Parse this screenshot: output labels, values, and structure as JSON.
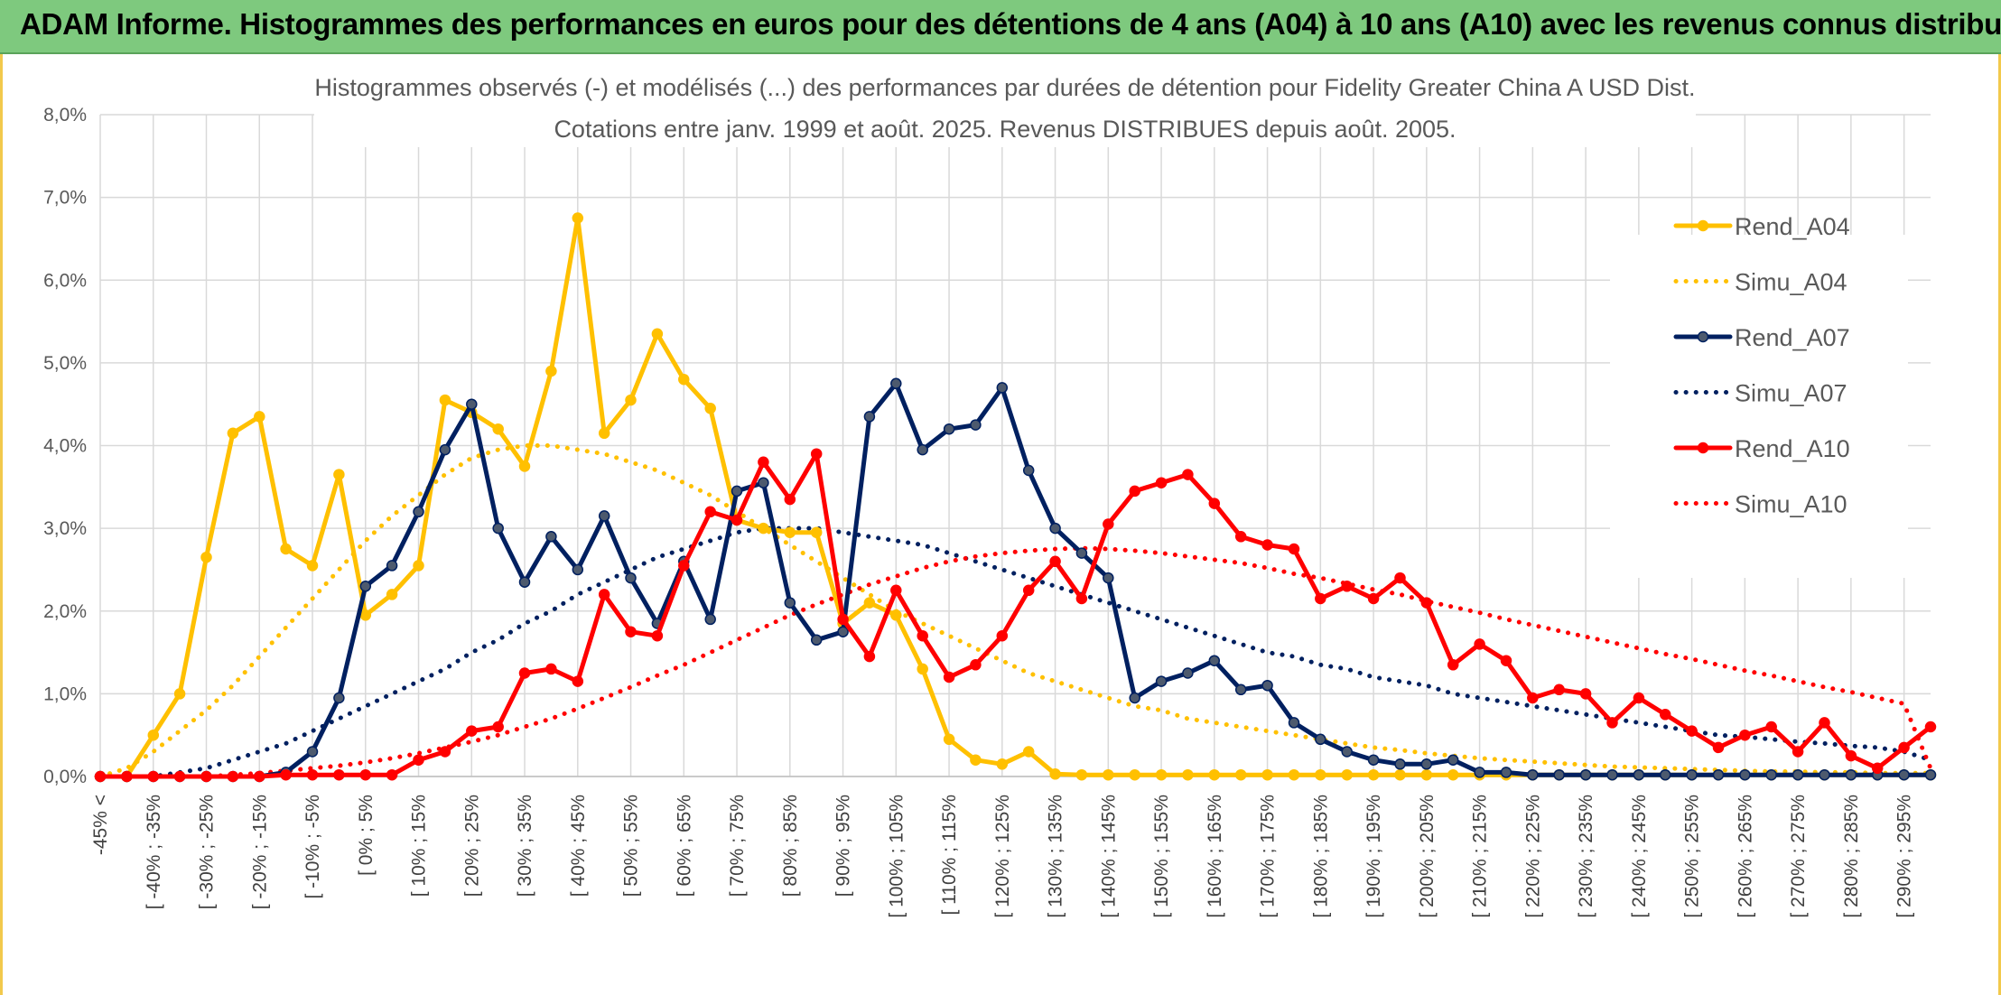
{
  "banner": {
    "title": "ADAM Informe. Histogrammes des performances en euros pour des détentions de 4 ans (A04) à 10 ans (A10) avec les revenus connus distribués"
  },
  "chart_data": {
    "type": "line",
    "title_line1": "Histogrammes observés (-) et modélisés (...) des performances par durées de détention pour Fidelity Greater China A USD Dist.",
    "title_line2": "Cotations entre janv. 1999 et août. 2025. Revenus DISTRIBUES depuis août. 2005.",
    "xlabel": "",
    "ylabel": "",
    "ylim": [
      0,
      8
    ],
    "y_unit": "%",
    "y_ticks": [
      "0,0%",
      "1,0%",
      "2,0%",
      "3,0%",
      "4,0%",
      "5,0%",
      "6,0%",
      "7,0%",
      "8,0%"
    ],
    "grid": true,
    "legend_position": "right",
    "categories": [
      "-45% <",
      "[ -45% ; -40%",
      "[ -40% ; -35%",
      "[ -35% ; -30%",
      "[ -30% ; -25%",
      "[ -25% ; -20%",
      "[ -20% ; -15%",
      "[ -15% ; -10%",
      "[ -10% ; -5%",
      "[ -5% ; 0%",
      "[ 0% ; 5%",
      "[ 5% ; 10%",
      "[ 10% ; 15%",
      "[ 15% ; 20%",
      "[ 20% ; 25%",
      "[ 25% ; 30%",
      "[ 30% ; 35%",
      "[ 35% ; 40%",
      "[ 40% ; 45%",
      "[ 45% ; 50%",
      "[ 50% ; 55%",
      "[ 55% ; 60%",
      "[ 60% ; 65%",
      "[ 65% ; 70%",
      "[ 70% ; 75%",
      "[ 75% ; 80%",
      "[ 80% ; 85%",
      "[ 85% ; 90%",
      "[ 90% ; 95%",
      "[ 95% ; 100%",
      "[ 100% ; 105%",
      "[ 105% ; 110%",
      "[ 110% ; 115%",
      "[ 115% ; 120%",
      "[ 120% ; 125%",
      "[ 125% ; 130%",
      "[ 130% ; 135%",
      "[ 135% ; 140%",
      "[ 140% ; 145%",
      "[ 145% ; 150%",
      "[ 150% ; 155%",
      "[ 155% ; 160%",
      "[ 160% ; 165%",
      "[ 165% ; 170%",
      "[ 170% ; 175%",
      "[ 175% ; 180%",
      "[ 180% ; 185%",
      "[ 185% ; 190%",
      "[ 190% ; 195%",
      "[ 195% ; 200%",
      "[ 200% ; 205%",
      "[ 205% ; 210%",
      "[ 210% ; 215%",
      "[ 215% ; 220%",
      "[ 220% ; 225%",
      "[ 225% ; 230%",
      "[ 230% ; 235%",
      "[ 235% ; 240%",
      "[ 240% ; 245%",
      "[ 245% ; 250%",
      "[ 250% ; 255%",
      "[ 255% ; 260%",
      "[ 260% ; 265%",
      "[ 265% ; 270%",
      "[ 270% ; 275%",
      "[ 275% ; 280%",
      "[ 280% ; 285%",
      "[ 285% ; 290%",
      "[ 290% ; 295%",
      "[ 295% ; 300%"
    ],
    "shown_tick_labels": [
      "-45% <",
      "[ -40% ; -35%",
      "[ -30% ; -25%",
      "[ -20% ; -15%",
      "[ -10% ; -5%",
      "[ 0% ; 5%",
      "[ 10% ; 15%",
      "[ 20% ; 25%",
      "[ 30% ; 35%",
      "[ 40% ; 45%",
      "[ 50% ; 55%",
      "[ 60% ; 65%",
      "[ 70% ; 75%",
      "[ 80% ; 85%",
      "[ 90% ; 95%",
      "[ 100% ; 105%",
      "[ 110% ; 115%",
      "[ 120% ; 125%",
      "[ 130% ; 135%",
      "[ 140% ; 145%",
      "[ 150% ; 155%",
      "[ 160% ; 165%",
      "[ 170% ; 175%",
      "[ 180% ; 185%",
      "[ 190% ; 195%",
      "[ 200% ; 205%",
      "[ 210% ; 215%",
      "[ 220% ; 225%",
      "[ 230% ; 235%",
      "[ 240% ; 245%",
      "[ 250% ; 255%",
      "[ 260% ; 265%",
      "[ 270% ; 275%",
      "[ 280% ; 285%",
      "[ 290% ; 295%"
    ],
    "series": [
      {
        "name": "Rend_A04",
        "color": "#ffc000",
        "style": "solid",
        "markers": true,
        "values": [
          0,
          0,
          0.5,
          1.0,
          2.65,
          4.15,
          4.35,
          2.75,
          2.55,
          3.65,
          1.95,
          2.2,
          2.55,
          4.55,
          4.4,
          4.2,
          3.75,
          4.9,
          6.75,
          4.15,
          4.55,
          5.35,
          4.8,
          4.45,
          3.1,
          3.0,
          2.95,
          2.95,
          1.85,
          2.1,
          1.95,
          1.3,
          0.45,
          0.2,
          0.15,
          0.3,
          0.03,
          0.02,
          0.02,
          0.02,
          0.02,
          0.02,
          0.02,
          0.02,
          0.02,
          0.02,
          0.02,
          0.02,
          0.02,
          0.02,
          0.02,
          0.02,
          0.02,
          0.02,
          0.02,
          0.02,
          0.02,
          0.02,
          0.02,
          0.02,
          0.02,
          0.02,
          0.02,
          0.02,
          0.02,
          0.02,
          0.02,
          0.02,
          0.02,
          0.02
        ]
      },
      {
        "name": "Simu_A04",
        "color": "#ffc000",
        "style": "dotted",
        "markers": false,
        "values": [
          0,
          0.1,
          0.3,
          0.55,
          0.8,
          1.1,
          1.45,
          1.8,
          2.15,
          2.5,
          2.85,
          3.15,
          3.4,
          3.65,
          3.85,
          3.95,
          4.0,
          4.0,
          3.95,
          3.9,
          3.8,
          3.7,
          3.55,
          3.4,
          3.2,
          3.0,
          2.8,
          2.6,
          2.4,
          2.2,
          2.0,
          1.85,
          1.7,
          1.55,
          1.4,
          1.25,
          1.15,
          1.05,
          0.95,
          0.85,
          0.8,
          0.7,
          0.65,
          0.6,
          0.55,
          0.5,
          0.45,
          0.4,
          0.35,
          0.32,
          0.28,
          0.25,
          0.22,
          0.2,
          0.18,
          0.16,
          0.14,
          0.12,
          0.11,
          0.1,
          0.09,
          0.08,
          0.07,
          0.06,
          0.06,
          0.05,
          0.05,
          0.04,
          0.04,
          0.04
        ]
      },
      {
        "name": "Rend_A07",
        "color": "#002060",
        "style": "solid",
        "markers": true,
        "values": [
          0,
          0,
          0,
          0,
          0,
          0,
          0,
          0.05,
          0.3,
          0.95,
          2.3,
          2.55,
          3.2,
          3.95,
          4.5,
          3.0,
          2.35,
          2.9,
          2.5,
          3.15,
          2.4,
          1.85,
          2.6,
          1.9,
          3.45,
          3.55,
          2.1,
          1.65,
          1.75,
          4.35,
          4.75,
          3.95,
          4.2,
          4.25,
          4.7,
          3.7,
          3.0,
          2.7,
          2.4,
          0.95,
          1.15,
          1.25,
          1.4,
          1.05,
          1.1,
          0.65,
          0.45,
          0.3,
          0.2,
          0.15,
          0.15,
          0.2,
          0.05,
          0.05,
          0.02,
          0.02,
          0.02,
          0.02,
          0.02,
          0.02,
          0.02,
          0.02,
          0.02,
          0.02,
          0.02,
          0.02,
          0.02,
          0.02,
          0.02,
          0.02
        ]
      },
      {
        "name": "Simu_A07",
        "color": "#002060",
        "style": "dotted",
        "markers": false,
        "values": [
          0,
          0,
          0,
          0.05,
          0.1,
          0.2,
          0.3,
          0.4,
          0.55,
          0.7,
          0.85,
          1.0,
          1.15,
          1.3,
          1.5,
          1.65,
          1.85,
          2.0,
          2.2,
          2.35,
          2.5,
          2.65,
          2.75,
          2.85,
          2.95,
          3.0,
          3.0,
          3.0,
          2.95,
          2.9,
          2.85,
          2.8,
          2.7,
          2.6,
          2.5,
          2.4,
          2.3,
          2.2,
          2.1,
          2.0,
          1.9,
          1.8,
          1.7,
          1.6,
          1.5,
          1.45,
          1.35,
          1.3,
          1.2,
          1.15,
          1.1,
          1.0,
          0.95,
          0.9,
          0.85,
          0.8,
          0.75,
          0.7,
          0.65,
          0.6,
          0.55,
          0.5,
          0.48,
          0.45,
          0.42,
          0.4,
          0.37,
          0.35,
          0.3,
          0.2
        ]
      },
      {
        "name": "Rend_A10",
        "color": "#ff0000",
        "style": "solid",
        "markers": true,
        "values": [
          0,
          0,
          0,
          0,
          0,
          0,
          0,
          0.02,
          0.02,
          0.02,
          0.02,
          0.02,
          0.2,
          0.3,
          0.55,
          0.6,
          1.25,
          1.3,
          1.15,
          2.2,
          1.75,
          1.7,
          2.55,
          3.2,
          3.1,
          3.8,
          3.35,
          3.9,
          1.9,
          1.45,
          2.25,
          1.7,
          1.2,
          1.35,
          1.7,
          2.25,
          2.6,
          2.15,
          3.05,
          3.45,
          3.55,
          3.65,
          3.3,
          2.9,
          2.8,
          2.75,
          2.15,
          2.3,
          2.15,
          2.4,
          2.1,
          1.35,
          1.6,
          1.4,
          0.95,
          1.05,
          1.0,
          0.65,
          0.95,
          0.75,
          0.55,
          0.35,
          0.5,
          0.6,
          0.3,
          0.65,
          0.25,
          0.1,
          0.35,
          0.6
        ]
      },
      {
        "name": "Simu_A10",
        "color": "#ff0000",
        "style": "dotted",
        "markers": false,
        "values": [
          0,
          0,
          0,
          0,
          0,
          0.02,
          0.04,
          0.07,
          0.1,
          0.13,
          0.17,
          0.22,
          0.28,
          0.35,
          0.42,
          0.5,
          0.6,
          0.7,
          0.82,
          0.95,
          1.08,
          1.22,
          1.35,
          1.5,
          1.65,
          1.8,
          1.95,
          2.08,
          2.2,
          2.32,
          2.42,
          2.52,
          2.6,
          2.66,
          2.7,
          2.73,
          2.75,
          2.76,
          2.75,
          2.73,
          2.7,
          2.66,
          2.62,
          2.58,
          2.52,
          2.45,
          2.4,
          2.33,
          2.26,
          2.2,
          2.12,
          2.05,
          1.98,
          1.9,
          1.83,
          1.76,
          1.69,
          1.62,
          1.55,
          1.48,
          1.42,
          1.35,
          1.28,
          1.22,
          1.15,
          1.08,
          1.02,
          0.95,
          0.88,
          0.1
        ]
      }
    ]
  }
}
